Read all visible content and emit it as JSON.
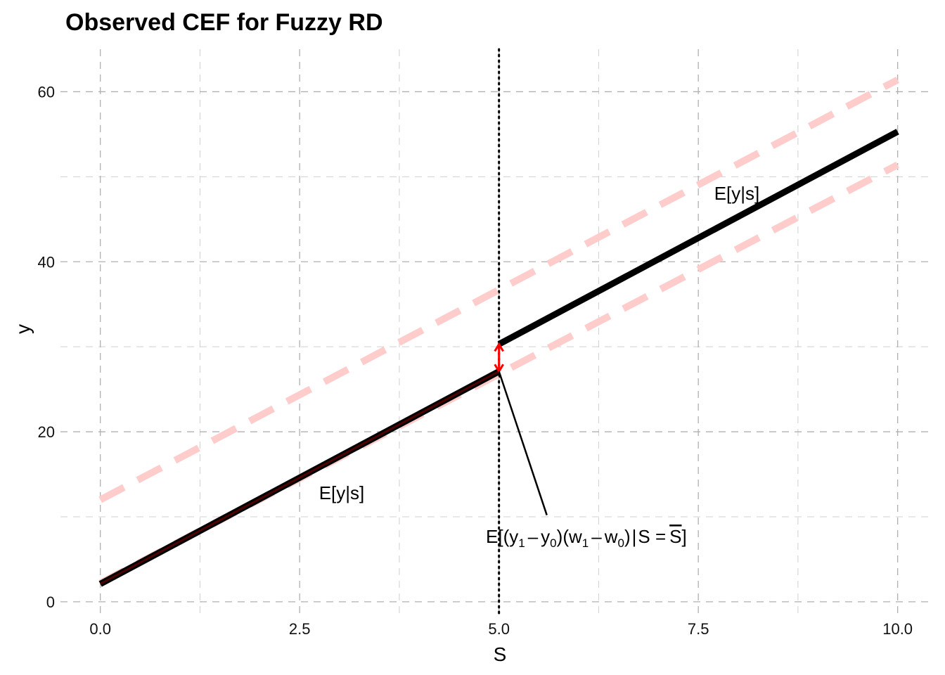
{
  "chart_data": {
    "type": "line",
    "title": "Observed CEF for Fuzzy RD",
    "xlabel": "S",
    "ylabel": "y",
    "xlim": [
      -0.5,
      10.4
    ],
    "ylim": [
      -1.5,
      65
    ],
    "x_ticks": [
      0,
      2.5,
      5,
      7.5,
      10
    ],
    "x_tick_labels": [
      "0.0",
      "2.5",
      "5.0",
      "7.5",
      "10.0"
    ],
    "y_ticks": [
      0,
      20,
      40,
      60
    ],
    "y_tick_labels": [
      "0",
      "20",
      "40",
      "60"
    ],
    "grid": true,
    "legend": "none",
    "cutoff": 5,
    "series": [
      {
        "style": "solid",
        "color": "#000000",
        "x": [
          0,
          5
        ],
        "y": [
          2.1,
          27.1
        ]
      },
      {
        "style": "solid",
        "color": "#000000",
        "x": [
          5,
          10
        ],
        "y": [
          30.3,
          55.3
        ]
      },
      {
        "style": "solid",
        "color": "#5a0000",
        "x": [
          0,
          5
        ],
        "y": [
          2.1,
          27.1
        ]
      },
      {
        "style": "dashed",
        "color": "#ffcccc",
        "x": [
          0,
          10
        ],
        "y": [
          12,
          61.4
        ]
      },
      {
        "style": "dashed",
        "color": "#ffcccc",
        "x": [
          0,
          10
        ],
        "y": [
          2.2,
          51.4
        ]
      }
    ],
    "jump": {
      "x": 5,
      "y_from": 27.1,
      "y_to": 30.3,
      "color": "#ff0000"
    },
    "annotations": [
      {
        "text": "E[y|s]",
        "x": 7.95,
        "y": 47.0
      },
      {
        "text": "E[y|s]",
        "x": 3.0,
        "y": 12.6
      }
    ],
    "formula": {
      "leader": {
        "x_from": 5.6,
        "y_from": 10.2,
        "x_to": 5.0,
        "y_to": 27.1
      },
      "parts": {
        "e": "E",
        "open": "[(",
        "y": "y",
        "one": "1",
        "minus": "–",
        "zero": "0",
        "close_paren": ")",
        "open_paren": "(",
        "w": "w",
        "bar": "|",
        "s_eq": "S =",
        "s_bar": "S",
        "close": "]"
      }
    }
  }
}
